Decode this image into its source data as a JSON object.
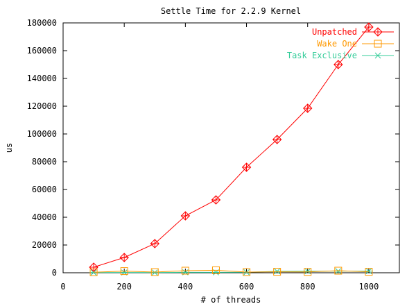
{
  "chart_data": {
    "type": "line",
    "title": "Settle Time for 2.2.9 Kernel",
    "xlabel": "# of threads",
    "ylabel": "us",
    "xlim": [
      0,
      1100
    ],
    "ylim": [
      0,
      180000
    ],
    "xticks": [
      0,
      200,
      400,
      600,
      800,
      1000
    ],
    "yticks": [
      0,
      20000,
      40000,
      60000,
      80000,
      100000,
      120000,
      140000,
      160000,
      180000
    ],
    "x": [
      100,
      200,
      300,
      400,
      500,
      600,
      700,
      800,
      900,
      1000
    ],
    "legend_position": "top-right",
    "grid": false,
    "series": [
      {
        "name": "Unpatched",
        "color": "#ff0000",
        "marker": "diamond-plus",
        "values": [
          4000,
          11000,
          21000,
          41000,
          52500,
          76000,
          96000,
          118500,
          150000,
          177000
        ]
      },
      {
        "name": "Wake One",
        "color": "#ff9900",
        "marker": "square",
        "values": [
          400,
          1200,
          500,
          1500,
          1800,
          500,
          700,
          600,
          1500,
          700
        ]
      },
      {
        "name": "Task Exclusive",
        "color": "#33cc99",
        "marker": "asterisk",
        "values": [
          200,
          200,
          200,
          300,
          300,
          400,
          1000,
          1100,
          1200,
          1200
        ]
      }
    ]
  }
}
